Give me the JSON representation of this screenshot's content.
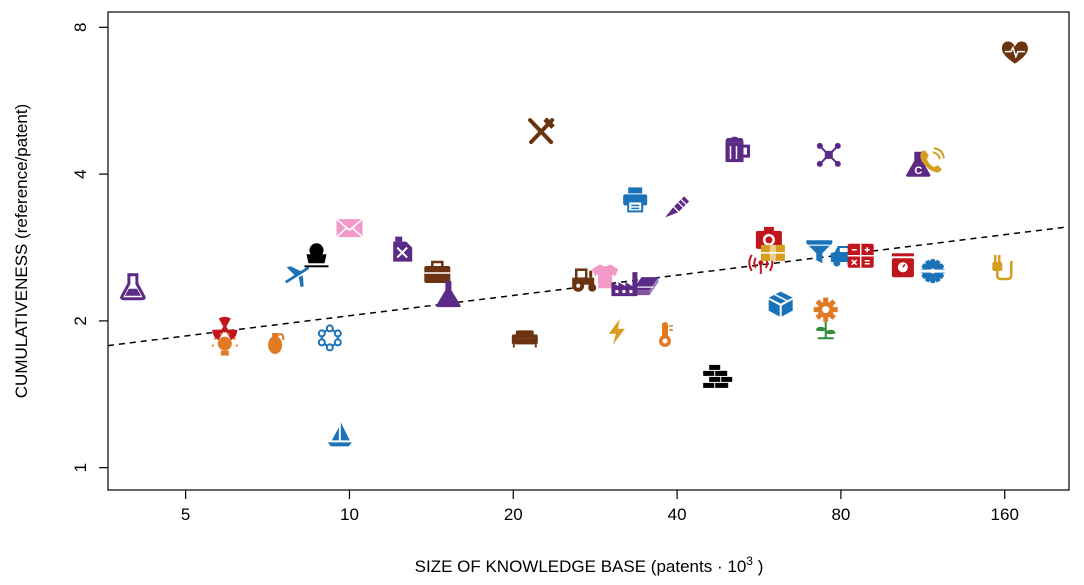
{
  "chart_data": {
    "type": "scatter",
    "xlabel": "SIZE OF KNOWLEDGE BASE (patents",
    "xlabel_dot": "·",
    "xlabel_base": "10",
    "xlabel_exp": "3",
    "xlabel_close": ")",
    "ylabel": "CUMULATIVENESS (reference/patent)",
    "x_scale": "log",
    "y_scale": "log",
    "xlim": [
      3.6,
      210
    ],
    "ylim": [
      0.9,
      8.6
    ],
    "xticks": [
      {
        "value": 5,
        "label": "5"
      },
      {
        "value": 10,
        "label": "10"
      },
      {
        "value": 20,
        "label": "20"
      },
      {
        "value": 40,
        "label": "40"
      },
      {
        "value": 80,
        "label": "80"
      },
      {
        "value": 160,
        "label": "160"
      }
    ],
    "yticks": [
      {
        "value": 1,
        "label": "1"
      },
      {
        "value": 2,
        "label": "2"
      },
      {
        "value": 4,
        "label": "4"
      },
      {
        "value": 8,
        "label": "8"
      }
    ],
    "trend_line": {
      "style": "dashed",
      "x": [
        3.6,
        210
      ],
      "y": [
        1.78,
        3.12
      ]
    },
    "grid": false,
    "points": [
      {
        "icon": "flask-icon",
        "x": 4.0,
        "y": 2.35,
        "color": "#5b2a86"
      },
      {
        "icon": "radiation-icon",
        "x": 5.9,
        "y": 1.92,
        "color": "#c0151d"
      },
      {
        "icon": "bulb-icon",
        "x": 5.9,
        "y": 1.78,
        "color": "#e07b24"
      },
      {
        "icon": "grenade-icon",
        "x": 7.3,
        "y": 1.81,
        "color": "#e07b24"
      },
      {
        "icon": "airplane-icon",
        "x": 8.0,
        "y": 2.48,
        "color": "#1a72b9"
      },
      {
        "icon": "mine-cart-icon",
        "x": 8.7,
        "y": 2.7,
        "color": "#000000"
      },
      {
        "icon": "molecule-icon",
        "x": 9.2,
        "y": 1.85,
        "color": "#1a72b9"
      },
      {
        "icon": "sailboat-icon",
        "x": 9.6,
        "y": 1.17,
        "color": "#1a72b9"
      },
      {
        "icon": "envelope-icon",
        "x": 10.0,
        "y": 3.1,
        "color": "#f19ac7"
      },
      {
        "icon": "jerrycan-icon",
        "x": 12.5,
        "y": 2.8,
        "color": "#5b2a86"
      },
      {
        "icon": "briefcase-icon",
        "x": 14.5,
        "y": 2.52,
        "color": "#6b3310"
      },
      {
        "icon": "flask-full-icon",
        "x": 15.2,
        "y": 2.27,
        "color": "#5b2a86"
      },
      {
        "icon": "sofa-icon",
        "x": 21.0,
        "y": 1.85,
        "color": "#6b3310"
      },
      {
        "icon": "utensils-icon",
        "x": 22.5,
        "y": 4.9,
        "color": "#6b3310"
      },
      {
        "icon": "tractor-icon",
        "x": 27.0,
        "y": 2.43,
        "color": "#6b3310"
      },
      {
        "icon": "shirt-icon",
        "x": 29.5,
        "y": 2.47,
        "color": "#f19ac7"
      },
      {
        "icon": "bolt-icon",
        "x": 31.0,
        "y": 1.9,
        "color": "#d69e1f"
      },
      {
        "icon": "factory-icon",
        "x": 32.0,
        "y": 2.38,
        "color": "#5b2a86"
      },
      {
        "icon": "printer-icon",
        "x": 33.5,
        "y": 3.55,
        "color": "#1a72b9"
      },
      {
        "icon": "steel-beam-icon",
        "x": 35.0,
        "y": 2.38,
        "color": "#5b2a86"
      },
      {
        "icon": "thermometer-icon",
        "x": 38.0,
        "y": 1.88,
        "color": "#e07b24"
      },
      {
        "icon": "paintbrush-icon",
        "x": 40.0,
        "y": 3.45,
        "color": "#5b2a86"
      },
      {
        "icon": "bricks-icon",
        "x": 47.0,
        "y": 1.55,
        "color": "#000000"
      },
      {
        "icon": "beer-mug-icon",
        "x": 51.0,
        "y": 4.48,
        "color": "#5b2a86"
      },
      {
        "icon": "antenna-icon",
        "x": 57.0,
        "y": 2.63,
        "color": "#c0151d"
      },
      {
        "icon": "camera-icon",
        "x": 59.0,
        "y": 2.96,
        "color": "#c0151d"
      },
      {
        "icon": "package-icon",
        "x": 60.0,
        "y": 2.77,
        "color": "#d69e1f"
      },
      {
        "icon": "cube-icon",
        "x": 62.0,
        "y": 2.17,
        "color": "#1a72b9"
      },
      {
        "icon": "funnel-icon",
        "x": 73.0,
        "y": 2.78,
        "color": "#1a72b9"
      },
      {
        "icon": "flower-icon",
        "x": 75.0,
        "y": 1.95,
        "color": "#e07b24"
      },
      {
        "icon": "gear-icon",
        "x": 75.0,
        "y": 2.11,
        "color": "#e07b24"
      },
      {
        "icon": "network-icon",
        "x": 76.0,
        "y": 4.38,
        "color": "#5b2a86"
      },
      {
        "icon": "car-icon",
        "x": 81.0,
        "y": 2.73,
        "color": "#1a72b9"
      },
      {
        "icon": "calculator-icon",
        "x": 87.0,
        "y": 2.72,
        "color": "#c0151d"
      },
      {
        "icon": "scale-icon",
        "x": 104.0,
        "y": 2.6,
        "color": "#c0151d"
      },
      {
        "icon": "chemistry-flask-icon",
        "x": 111.0,
        "y": 4.18,
        "color": "#5b2a86"
      },
      {
        "icon": "phone-icon",
        "x": 117.0,
        "y": 4.27,
        "color": "#d69e1f"
      },
      {
        "icon": "saw-blade-icon",
        "x": 118.0,
        "y": 2.53,
        "color": "#1a72b9"
      },
      {
        "icon": "plug-icon",
        "x": 157.0,
        "y": 2.58,
        "color": "#d69e1f"
      },
      {
        "icon": "heart-pulse-icon",
        "x": 167.0,
        "y": 7.1,
        "color": "#6b3310"
      }
    ]
  }
}
